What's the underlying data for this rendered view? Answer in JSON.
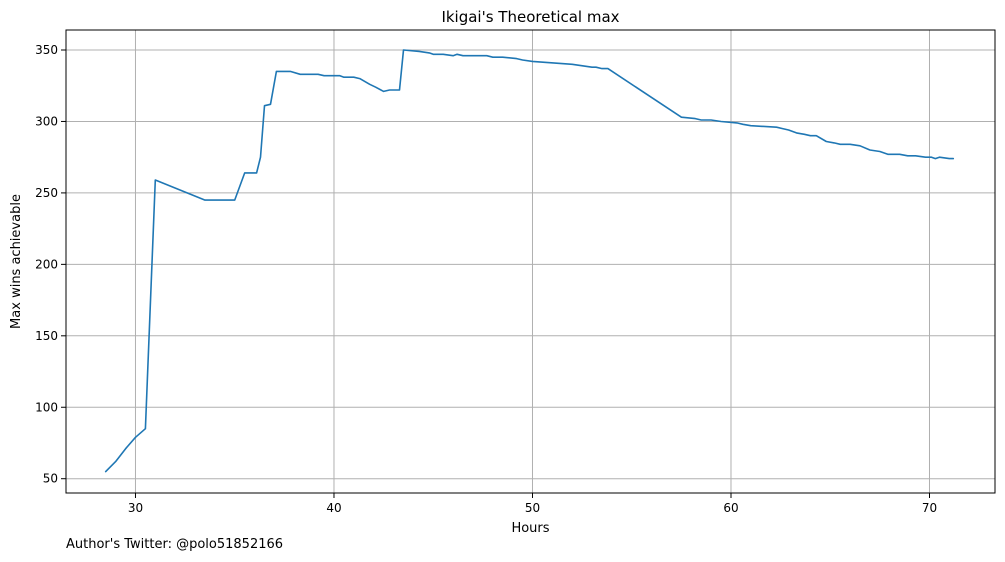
{
  "footnote": "Author's Twitter: @polo51852166",
  "chart_data": {
    "type": "line",
    "title": "Ikigai's Theoretical max",
    "xlabel": "Hours",
    "ylabel": "Max wins achievable",
    "xlim": [
      26.5,
      73.3
    ],
    "ylim": [
      40,
      364
    ],
    "xticks": [
      30,
      40,
      50,
      60,
      70
    ],
    "yticks": [
      50,
      100,
      150,
      200,
      250,
      300,
      350
    ],
    "grid": true,
    "color": "#1f77b4",
    "series": [
      {
        "x": [
          28.5,
          29.0,
          29.5,
          30.0,
          30.5,
          31.0,
          33.5,
          34.5,
          35.0,
          35.5,
          36.1,
          36.3,
          36.5,
          36.8,
          37.1,
          37.8,
          38.3,
          39.2,
          39.5,
          40.3,
          40.5,
          41.0,
          41.3,
          41.8,
          42.1,
          42.5,
          42.8,
          43.3,
          43.5,
          44.3,
          44.8,
          45.0,
          45.5,
          46.0,
          46.2,
          46.5,
          47.0,
          47.3,
          47.7,
          48.0,
          48.5,
          49.2,
          49.5,
          50.0,
          52.0,
          53.0,
          53.2,
          53.5,
          53.8,
          57.5,
          58.2,
          58.5,
          59.0,
          59.5,
          60.3,
          60.6,
          61.0,
          62.3,
          62.6,
          62.9,
          63.3,
          63.7,
          64.0,
          64.3,
          64.8,
          65.2,
          65.5,
          66.0,
          66.5,
          67.0,
          67.5,
          67.9,
          68.3,
          68.5,
          68.9,
          69.3,
          69.8,
          70.1,
          70.3,
          70.5,
          71.0,
          71.2
        ],
        "y": [
          55,
          62,
          71,
          79,
          85,
          259,
          245,
          245,
          245,
          264,
          264,
          275,
          311,
          312,
          335,
          335,
          333,
          333,
          332,
          332,
          331,
          331,
          330,
          326,
          324,
          321,
          322,
          322,
          350,
          349,
          348,
          347,
          347,
          346,
          347,
          346,
          346,
          346,
          346,
          345,
          345,
          344,
          343,
          342,
          340,
          338,
          338,
          337,
          337,
          303,
          302,
          301,
          301,
          300,
          299,
          298,
          297,
          296,
          295,
          294,
          292,
          291,
          290,
          290,
          286,
          285,
          284,
          284,
          283,
          280,
          279,
          277,
          277,
          277,
          276,
          276,
          275,
          275,
          274,
          275,
          274,
          274
        ]
      }
    ]
  }
}
